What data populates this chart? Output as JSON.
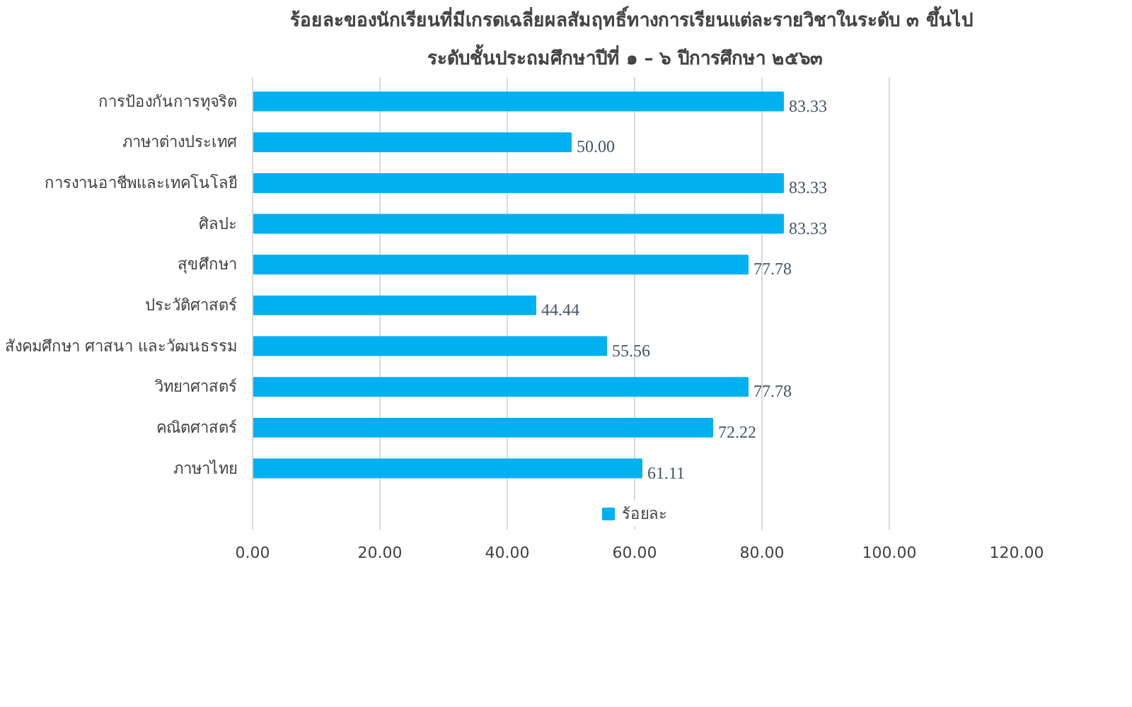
{
  "chart_data": {
    "type": "bar",
    "orientation": "horizontal",
    "title": "ร้อยละของนักเรียนที่มีเกรดเฉลี่ยผลสัมฤทธิ์ทางการเรียนแต่ละรายวิชาในระดับ ๓  ขึ้นไป",
    "subtitle": "ระดับชั้นประถมศึกษาปีที่  ๑ – ๖  ปีการศึกษา  ๒๕๖๓",
    "categories": [
      "การป้องกันการทุจริต",
      "ภาษาต่างประเทศ",
      "การงานอาชีพและเทคโนโลยี",
      "ศิลปะ",
      "สุขศึกษา",
      "ประวัติศาสตร์",
      "สังคมศึกษา ศาสนา และวัฒนธรรม",
      "วิทยาศาสตร์",
      "คณิตศาสตร์",
      "ภาษาไทย"
    ],
    "series": [
      {
        "name": "ร้อยละ",
        "color": "#00b0f0",
        "values": [
          83.33,
          50.0,
          83.33,
          83.33,
          77.78,
          44.44,
          55.56,
          77.78,
          72.22,
          61.11
        ],
        "value_labels": [
          "83.33",
          "50.00",
          "83.33",
          "83.33",
          "77.78",
          "44.44",
          "55.56",
          "77.78",
          "72.22",
          "61.11"
        ]
      }
    ],
    "xlim": [
      0,
      120
    ],
    "xticks": [
      {
        "value": 0,
        "label": "0.00"
      },
      {
        "value": 20,
        "label": "20.00"
      },
      {
        "value": 40,
        "label": "40.00"
      },
      {
        "value": 60,
        "label": "60.00"
      },
      {
        "value": 80,
        "label": "80.00"
      },
      {
        "value": 100,
        "label": "100.00"
      },
      {
        "value": 120,
        "label": "120.00"
      }
    ],
    "grid": "x",
    "legend": "bottom"
  }
}
